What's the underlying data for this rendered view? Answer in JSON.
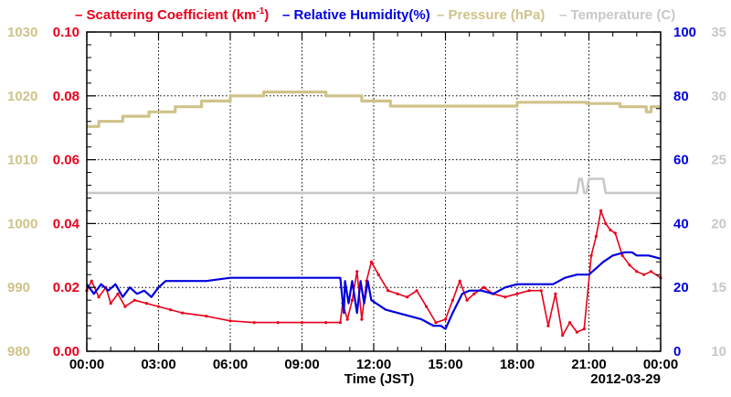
{
  "chart_data": {
    "type": "line",
    "date_label": "2012-03-29",
    "xlabel": "Time (JST)",
    "x_ticks": [
      "00:00",
      "03:00",
      "06:00",
      "09:00",
      "12:00",
      "15:00",
      "18:00",
      "21:00",
      "00:00"
    ],
    "xlim_hours": [
      0,
      24
    ],
    "grid": true,
    "legend_position": "top",
    "axes": {
      "scattering": {
        "ticks": [
          "0.00",
          "0.02",
          "0.04",
          "0.06",
          "0.08",
          "0.10"
        ],
        "ylim": [
          0,
          0.1
        ],
        "color": "#e8001c"
      },
      "humidity": {
        "ticks": [
          "0",
          "20",
          "40",
          "60",
          "80",
          "100"
        ],
        "ylim": [
          0,
          100
        ],
        "color": "#0000e0"
      },
      "pressure": {
        "ticks": [
          "980",
          "990",
          "1000",
          "1010",
          "1020",
          "1030"
        ],
        "ylim": [
          980,
          1030
        ],
        "color": "#cfc38a"
      },
      "temperature": {
        "ticks": [
          "10",
          "15",
          "20",
          "25",
          "30",
          "35"
        ],
        "ylim": [
          10,
          35
        ],
        "color": "#c8c8c8"
      }
    },
    "series": [
      {
        "name": "Scattering Coefficient (km",
        "name_sup": "-1",
        "name_suffix": ")",
        "axis": "scattering",
        "x": [
          0,
          0.2,
          0.5,
          0.8,
          1.0,
          1.3,
          1.6,
          2.0,
          2.5,
          3.0,
          3.5,
          4.0,
          5.0,
          6.0,
          7.0,
          8.0,
          9.0,
          10.0,
          10.6,
          10.7,
          10.9,
          11.1,
          11.3,
          11.5,
          11.7,
          11.9,
          12.2,
          12.6,
          13.0,
          13.4,
          13.8,
          14.2,
          14.6,
          15.0,
          15.3,
          15.6,
          15.9,
          16.2,
          16.6,
          17.0,
          17.5,
          18.0,
          18.5,
          19.0,
          19.3,
          19.6,
          19.9,
          20.2,
          20.5,
          20.8,
          21.1,
          21.3,
          21.5,
          21.7,
          21.9,
          22.1,
          22.4,
          22.7,
          23.0,
          23.3,
          23.6,
          24.0
        ],
        "y": [
          0.019,
          0.022,
          0.017,
          0.02,
          0.015,
          0.018,
          0.014,
          0.016,
          0.015,
          0.014,
          0.013,
          0.012,
          0.011,
          0.0095,
          0.009,
          0.009,
          0.009,
          0.009,
          0.009,
          0.015,
          0.01,
          0.016,
          0.025,
          0.01,
          0.022,
          0.028,
          0.024,
          0.019,
          0.018,
          0.017,
          0.019,
          0.014,
          0.009,
          0.01,
          0.016,
          0.022,
          0.016,
          0.018,
          0.02,
          0.018,
          0.017,
          0.018,
          0.019,
          0.019,
          0.008,
          0.018,
          0.005,
          0.009,
          0.006,
          0.007,
          0.03,
          0.036,
          0.044,
          0.04,
          0.038,
          0.037,
          0.03,
          0.027,
          0.025,
          0.024,
          0.025,
          0.023
        ]
      },
      {
        "name": "Relative Humidity(%)",
        "axis": "humidity",
        "x": [
          0,
          0.3,
          0.6,
          0.9,
          1.2,
          1.5,
          1.8,
          2.1,
          2.4,
          2.7,
          3.0,
          3.3,
          4.0,
          5.0,
          6.0,
          7.0,
          8.0,
          9.0,
          10.0,
          10.6,
          10.75,
          10.8,
          10.95,
          11.1,
          11.3,
          11.45,
          11.6,
          11.75,
          11.9,
          12.1,
          12.5,
          13.0,
          13.5,
          14.0,
          14.5,
          14.8,
          15.0,
          15.3,
          15.7,
          16.0,
          16.5,
          17.0,
          17.5,
          18.0,
          18.5,
          19.0,
          19.5,
          20.0,
          20.5,
          21.0,
          21.3,
          21.6,
          22.0,
          22.5,
          22.8,
          23.0,
          23.5,
          24.0
        ],
        "y": [
          21,
          18,
          21,
          19,
          21,
          17,
          20,
          18,
          19,
          17,
          20,
          22,
          22,
          22,
          23,
          23,
          23,
          23,
          23,
          23,
          12,
          22,
          15,
          22,
          12,
          22,
          15,
          22,
          16,
          15,
          13,
          12,
          11,
          10,
          8,
          8,
          7,
          12,
          18,
          19,
          19,
          18,
          20,
          21,
          21,
          21,
          21,
          23,
          24,
          24,
          26,
          28,
          30,
          31,
          31,
          30,
          30,
          29
        ]
      },
      {
        "name": "Pressure (hPa)",
        "axis": "pressure",
        "x": [
          0,
          0.5,
          0.5,
          1.5,
          1.5,
          2.6,
          2.6,
          3.7,
          3.7,
          4.8,
          4.8,
          6.0,
          6.0,
          7.4,
          7.4,
          10.0,
          10.0,
          11.5,
          11.5,
          12.7,
          12.7,
          18.0,
          18.0,
          20.9,
          20.9,
          22.3,
          22.3,
          23.4,
          23.4,
          23.6,
          23.6,
          24.0
        ],
        "y": [
          1015.2,
          1015.2,
          1016.0,
          1016.0,
          1016.8,
          1016.8,
          1017.5,
          1017.5,
          1018.3,
          1018.3,
          1019.2,
          1019.2,
          1020.0,
          1020.0,
          1020.6,
          1020.6,
          1020.0,
          1020.0,
          1019.2,
          1019.2,
          1018.4,
          1018.4,
          1019.0,
          1019.0,
          1018.8,
          1018.8,
          1018.3,
          1018.3,
          1017.5,
          1017.5,
          1018.3,
          1018.3
        ]
      },
      {
        "name": "Temperature (",
        "name_suffix": "C)",
        "axis": "temperature",
        "x": [
          0,
          20.5,
          20.6,
          20.7,
          20.8,
          20.9,
          21.0,
          21.1,
          21.6,
          21.7,
          24.0
        ],
        "y": [
          22.4,
          22.4,
          23.5,
          23.5,
          22.4,
          22.4,
          23.5,
          23.5,
          23.5,
          22.4,
          22.4
        ]
      }
    ]
  }
}
